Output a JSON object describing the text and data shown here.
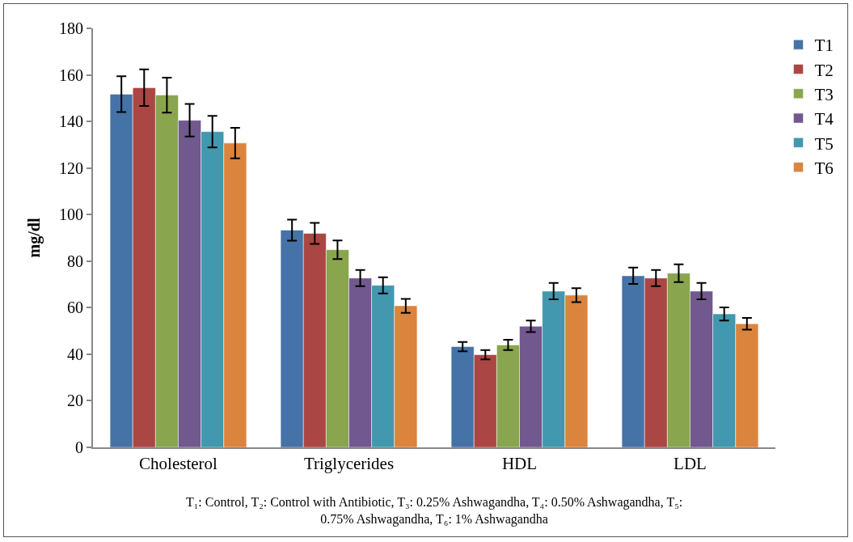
{
  "chart_data": {
    "type": "bar",
    "ylabel": "mg/dl",
    "categories": [
      "Cholesterol",
      "Triglycerides",
      "HDL",
      "LDL"
    ],
    "series": [
      {
        "name": "T1",
        "color": "#4572a7",
        "values": [
          151.7,
          93.3,
          43.3,
          73.7
        ],
        "errors": [
          7.7,
          4.5,
          2,
          3.5
        ]
      },
      {
        "name": "T2",
        "color": "#aa4643",
        "values": [
          154.5,
          91.9,
          39.8,
          72.7
        ],
        "errors": [
          7.9,
          4.5,
          2,
          3.5
        ]
      },
      {
        "name": "T3",
        "color": "#89a54e",
        "values": [
          151.3,
          84.9,
          44,
          74.8
        ],
        "errors": [
          7.5,
          4,
          2.2,
          3.8
        ]
      },
      {
        "name": "T4",
        "color": "#71588f",
        "values": [
          140.5,
          72.7,
          52,
          67.1
        ],
        "errors": [
          7,
          3.5,
          2.5,
          3.5
        ]
      },
      {
        "name": "T5",
        "color": "#4198af",
        "values": [
          135.6,
          69.6,
          67.1,
          57.3
        ],
        "errors": [
          6.8,
          3.5,
          3.5,
          2.8
        ]
      },
      {
        "name": "T6",
        "color": "#db843d",
        "values": [
          130.7,
          60.8,
          65.4,
          53.1
        ],
        "errors": [
          6.6,
          3,
          3,
          2.5
        ]
      }
    ],
    "ylim": [
      0,
      180
    ],
    "yticks": [
      0,
      20,
      40,
      60,
      80,
      100,
      120,
      140,
      160,
      180
    ],
    "grid": false,
    "legend": "right",
    "annotations": [
      "T₁: Control, T₂: Control with Antibiotic, T₃: 0.25% Ashwagandha, T₄: 0.50% Ashwagandha, T₅:\n0.75% Ashwagandha, T₆: 1% Ashwagandha"
    ]
  }
}
